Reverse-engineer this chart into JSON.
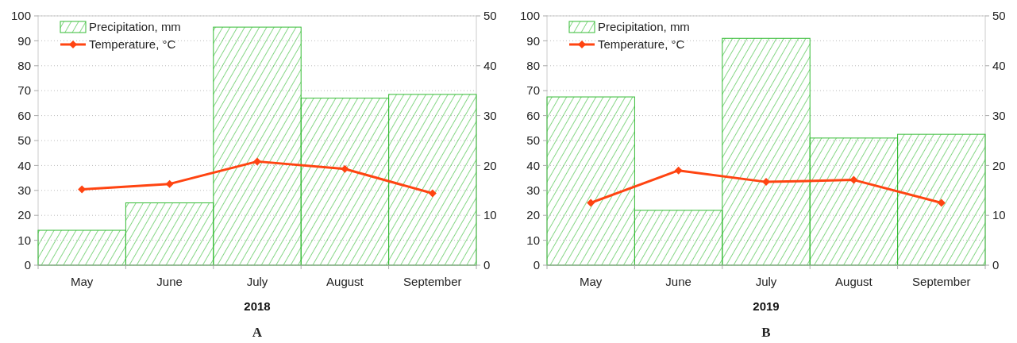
{
  "chart_data": [
    {
      "type": "bar",
      "xlabel": "2018",
      "categories": [
        "May",
        "June",
        "July",
        "August",
        "September"
      ],
      "series": [
        {
          "name": "Precipitation, mm",
          "color": "#33bb33",
          "values": [
            14,
            25,
            95.5,
            67,
            68.5
          ]
        },
        {
          "name": "Temperature, °C",
          "type": "line",
          "axis": "y2",
          "color": "#ff4411",
          "values": [
            15.2,
            16.3,
            20.8,
            19.3,
            14.4
          ]
        }
      ],
      "ylim": [
        0,
        100
      ],
      "yticks": [
        0,
        10,
        20,
        30,
        40,
        50,
        60,
        70,
        80,
        90,
        100
      ],
      "y2lim": [
        0,
        50
      ],
      "y2ticks": [
        0,
        10,
        20,
        30,
        40,
        50
      ],
      "grid": "y",
      "legend": "top left",
      "marker": "diamond",
      "annotations": [
        "A"
      ]
    },
    {
      "type": "bar",
      "xlabel": "2019",
      "categories": [
        "May",
        "June",
        "July",
        "August",
        "September"
      ],
      "series": [
        {
          "name": "Precipitation, mm",
          "color": "#33bb33",
          "values": [
            67.5,
            22,
            91,
            51,
            52.5
          ]
        },
        {
          "name": "Temperature, °C",
          "type": "line",
          "axis": "y2",
          "color": "#ff4411",
          "values": [
            12.5,
            19,
            16.7,
            17.1,
            12.5
          ]
        }
      ],
      "ylim": [
        0,
        100
      ],
      "yticks": [
        0,
        10,
        20,
        30,
        40,
        50,
        60,
        70,
        80,
        90,
        100
      ],
      "y2lim": [
        0,
        50
      ],
      "y2ticks": [
        0,
        10,
        20,
        30,
        40,
        50
      ],
      "grid": "y",
      "legend": "top left",
      "marker": "diamond",
      "annotations": [
        "B"
      ]
    }
  ]
}
